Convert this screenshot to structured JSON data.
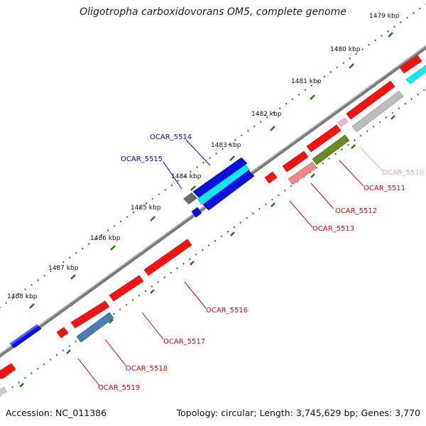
{
  "title": "Oligotropha carboxidovorans OM5, complete genome",
  "footer": {
    "accession": "Accession: NC_011386",
    "summary": "Topology: circular; Length: 3,745,629 bp; Genes: 3,770"
  },
  "scale_labels": [
    "1479 kbp",
    "1480 kbp",
    "1481 kbp",
    "1482 kbp",
    "1483 kbp",
    "1484 kbp",
    "1485 kbp",
    "1486 kbp",
    "1487 kbp",
    "1488 kbp"
  ],
  "gene_labels": {
    "ocar_5510": "OCAR_5510",
    "ocar_5511": "OCAR_5511",
    "ocar_5512": "OCAR_5512",
    "ocar_5513": "OCAR_5513",
    "ocar_5514": "OCAR_5514",
    "ocar_5515": "OCAR_5515",
    "ocar_5516": "OCAR_5516",
    "ocar_5517": "OCAR_5517",
    "ocar_5518": "OCAR_5518",
    "ocar_5519": "OCAR_5519"
  },
  "colors": {
    "backbone": "#8a8a8a",
    "ruler_ticks": "#1a7a1a",
    "forward_label": "#0000cc",
    "reverse_label": "#dd0000",
    "pink_label": "#ff9fb0",
    "gene_red": "#ff1010",
    "gene_blue": "#0a10e0",
    "gene_cyan": "#10e8ff",
    "gene_gray": "#bdbdbd",
    "gene_darkgray": "#6a6a6a",
    "gene_olive": "#6b8a25",
    "gene_salmon": "#f08888",
    "gene_steel": "#4a7fb5",
    "gene_pink": "#ffb0d0"
  }
}
